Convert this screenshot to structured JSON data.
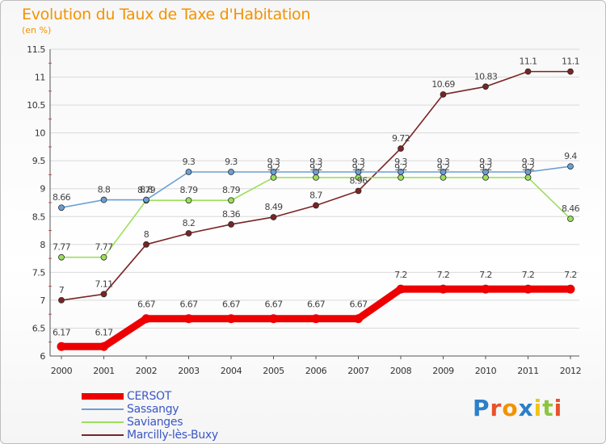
{
  "header": {
    "title": "Evolution du Taux de Taxe d'Habitation",
    "unit": "(en %)"
  },
  "logo": {
    "text": "Proxiti",
    "letters": [
      "P",
      "r",
      "o",
      "x",
      "i",
      "t",
      "i"
    ],
    "colors": [
      "#2c7fc7",
      "#e8522b",
      "#f39200",
      "#2c7fc7",
      "#f0c419",
      "#8cc63f",
      "#e8522b"
    ]
  },
  "chart_data": {
    "type": "line",
    "title": "Evolution du Taux de Taxe d'Habitation",
    "ylabel": "(en %)",
    "xlabel": "",
    "x": [
      "2000",
      "2001",
      "2002",
      "2003",
      "2004",
      "2005",
      "2006",
      "2007",
      "2008",
      "2009",
      "2010",
      "2011",
      "2012"
    ],
    "ylim": [
      6,
      11.5
    ],
    "yticks": [
      "6",
      "6.5",
      "7",
      "7.5",
      "8",
      "8.5",
      "9",
      "9.5",
      "10",
      "10.5",
      "11",
      "11.5"
    ],
    "grid": "horizontal",
    "legend_position": "bottom-left",
    "series": [
      {
        "name": "CERSOT",
        "color": "#ee0000",
        "values": [
          6.17,
          6.17,
          6.67,
          6.67,
          6.67,
          6.67,
          6.67,
          6.67,
          7.2,
          7.2,
          7.2,
          7.2,
          7.2
        ],
        "labels": [
          "6.17",
          "6.17",
          "6.67",
          "6.67",
          "6.67",
          "6.67",
          "6.67",
          "6.67",
          "7.2",
          "7.2",
          "7.2",
          "7.2",
          "7.2"
        ]
      },
      {
        "name": "Sassangy",
        "color": "#6b9fd4",
        "values": [
          8.66,
          8.8,
          8.8,
          9.3,
          9.3,
          9.3,
          9.3,
          9.3,
          9.3,
          9.3,
          9.3,
          9.3,
          9.4
        ],
        "labels": [
          "8.66",
          "8.8",
          "8.8",
          "9.3",
          "9.3",
          "9.3",
          "9.3",
          "9.3",
          "9.3",
          "9.3",
          "9.3",
          "9.3",
          "9.4"
        ]
      },
      {
        "name": "Savianges",
        "color": "#9be05a",
        "values": [
          7.77,
          7.77,
          8.79,
          8.79,
          8.79,
          9.2,
          9.2,
          9.2,
          9.2,
          9.2,
          9.2,
          9.2,
          8.46
        ],
        "labels": [
          "7.77",
          "7.77",
          "8.79",
          "8.79",
          "8.79",
          "9.2",
          "9.2",
          "9.2",
          "9.2",
          "9.2",
          "9.2",
          "9.2",
          "8.46"
        ]
      },
      {
        "name": "Marcilly-lès-Buxy",
        "color": "#7a2424",
        "values": [
          7.0,
          7.11,
          8.0,
          8.2,
          8.36,
          8.49,
          8.7,
          8.96,
          9.72,
          10.69,
          10.83,
          11.1,
          11.1
        ],
        "labels": [
          "7",
          "7.11",
          "8",
          "8.2",
          "8.36",
          "8.49",
          "8.7",
          "8.96",
          "9.72",
          "10.69",
          "10.83",
          "11.1",
          "11.1"
        ]
      }
    ]
  }
}
